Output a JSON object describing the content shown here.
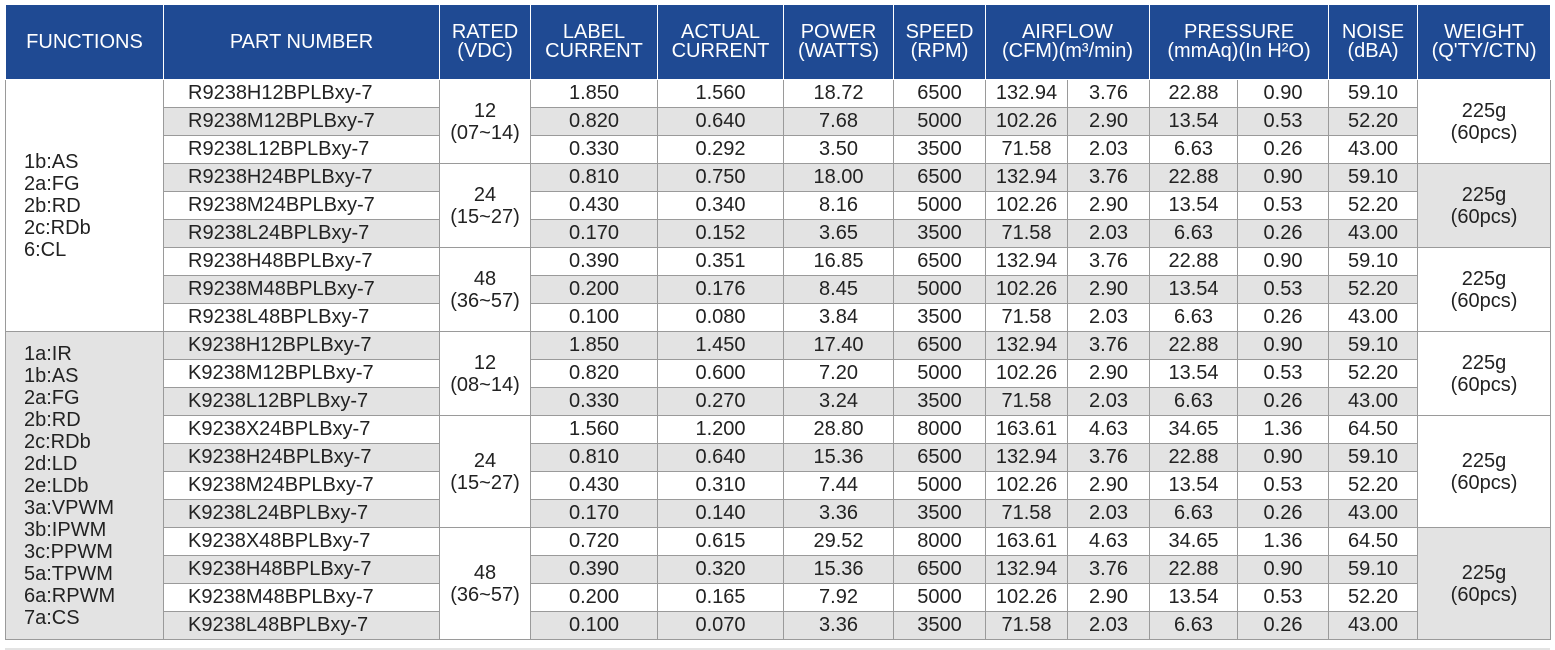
{
  "headers": {
    "functions": "FUNCTIONS",
    "part_number": "PART NUMBER",
    "rated": "RATED\n(VDC)",
    "label_current": "LABEL\nCURRENT",
    "actual_current": "ACTUAL\nCURRENT",
    "power": "POWER\n(WATTS)",
    "speed": "SPEED\n(RPM)",
    "airflow": "AIRFLOW\n(CFM)(m³/min)",
    "pressure": "PRESSURE\n(mmAq)(In H²O)",
    "noise": "NOISE\n(dBA)",
    "weight": "WEIGHT\n(Q'TY/CTN)"
  },
  "function_groups": [
    {
      "label": "1b:AS\n2a:FG\n2b:RD\n2c:RDb\n6:CL",
      "rows": 9
    },
    {
      "label": "1a:IR\n1b:AS\n2a:FG\n2b:RD\n2c:RDb\n2d:LD\n2e:LDb\n3a:VPWM\n3b:IPWM\n3c:PPWM\n5a:TPWM\n6a:RPWM\n7a:CS",
      "rows": 11
    }
  ],
  "rated_groups": [
    {
      "label": "12\n(07~14)",
      "rows": 3
    },
    {
      "label": "24\n(15~27)",
      "rows": 3
    },
    {
      "label": "48\n(36~57)",
      "rows": 3
    },
    {
      "label": "12\n(08~14)",
      "rows": 3
    },
    {
      "label": "24\n(15~27)",
      "rows": 4
    },
    {
      "label": "48\n(36~57)",
      "rows": 4
    }
  ],
  "weight_groups": [
    {
      "label": "225g\n(60pcs)",
      "rows": 3
    },
    {
      "label": "225g\n(60pcs)",
      "rows": 3
    },
    {
      "label": "225g\n(60pcs)",
      "rows": 3
    },
    {
      "label": "225g\n(60pcs)",
      "rows": 3
    },
    {
      "label": "225g\n(60pcs)",
      "rows": 4
    },
    {
      "label": "225g\n(60pcs)",
      "rows": 4
    }
  ],
  "rows": [
    [
      "R9238H12BPLBxy-7",
      "1.850",
      "1.560",
      "18.72",
      "6500",
      "132.94",
      "3.76",
      "22.88",
      "0.90",
      "59.10"
    ],
    [
      "R9238M12BPLBxy-7",
      "0.820",
      "0.640",
      "7.68",
      "5000",
      "102.26",
      "2.90",
      "13.54",
      "0.53",
      "52.20"
    ],
    [
      "R9238L12BPLBxy-7",
      "0.330",
      "0.292",
      "3.50",
      "3500",
      "71.58",
      "2.03",
      "6.63",
      "0.26",
      "43.00"
    ],
    [
      "R9238H24BPLBxy-7",
      "0.810",
      "0.750",
      "18.00",
      "6500",
      "132.94",
      "3.76",
      "22.88",
      "0.90",
      "59.10"
    ],
    [
      "R9238M24BPLBxy-7",
      "0.430",
      "0.340",
      "8.16",
      "5000",
      "102.26",
      "2.90",
      "13.54",
      "0.53",
      "52.20"
    ],
    [
      "R9238L24BPLBxy-7",
      "0.170",
      "0.152",
      "3.65",
      "3500",
      "71.58",
      "2.03",
      "6.63",
      "0.26",
      "43.00"
    ],
    [
      "R9238H48BPLBxy-7",
      "0.390",
      "0.351",
      "16.85",
      "6500",
      "132.94",
      "3.76",
      "22.88",
      "0.90",
      "59.10"
    ],
    [
      "R9238M48BPLBxy-7",
      "0.200",
      "0.176",
      "8.45",
      "5000",
      "102.26",
      "2.90",
      "13.54",
      "0.53",
      "52.20"
    ],
    [
      "R9238L48BPLBxy-7",
      "0.100",
      "0.080",
      "3.84",
      "3500",
      "71.58",
      "2.03",
      "6.63",
      "0.26",
      "43.00"
    ],
    [
      "K9238H12BPLBxy-7",
      "1.850",
      "1.450",
      "17.40",
      "6500",
      "132.94",
      "3.76",
      "22.88",
      "0.90",
      "59.10"
    ],
    [
      "K9238M12BPLBxy-7",
      "0.820",
      "0.600",
      "7.20",
      "5000",
      "102.26",
      "2.90",
      "13.54",
      "0.53",
      "52.20"
    ],
    [
      "K9238L12BPLBxy-7",
      "0.330",
      "0.270",
      "3.24",
      "3500",
      "71.58",
      "2.03",
      "6.63",
      "0.26",
      "43.00"
    ],
    [
      "K9238X24BPLBxy-7",
      "1.560",
      "1.200",
      "28.80",
      "8000",
      "163.61",
      "4.63",
      "34.65",
      "1.36",
      "64.50"
    ],
    [
      "K9238H24BPLBxy-7",
      "0.810",
      "0.640",
      "15.36",
      "6500",
      "132.94",
      "3.76",
      "22.88",
      "0.90",
      "59.10"
    ],
    [
      "K9238M24BPLBxy-7",
      "0.430",
      "0.310",
      "7.44",
      "5000",
      "102.26",
      "2.90",
      "13.54",
      "0.53",
      "52.20"
    ],
    [
      "K9238L24BPLBxy-7",
      "0.170",
      "0.140",
      "3.36",
      "3500",
      "71.58",
      "2.03",
      "6.63",
      "0.26",
      "43.00"
    ],
    [
      "K9238X48BPLBxy-7",
      "0.720",
      "0.615",
      "29.52",
      "8000",
      "163.61",
      "4.63",
      "34.65",
      "1.36",
      "64.50"
    ],
    [
      "K9238H48BPLBxy-7",
      "0.390",
      "0.320",
      "15.36",
      "6500",
      "132.94",
      "3.76",
      "22.88",
      "0.90",
      "59.10"
    ],
    [
      "K9238M48BPLBxy-7",
      "0.200",
      "0.165",
      "7.92",
      "5000",
      "102.26",
      "2.90",
      "13.54",
      "0.53",
      "52.20"
    ],
    [
      "K9238L48BPLBxy-7",
      "0.100",
      "0.070",
      "3.36",
      "3500",
      "71.58",
      "2.03",
      "6.63",
      "0.26",
      "43.00"
    ]
  ],
  "colors": {
    "header_bg": "#1f4a93",
    "header_text": "#ffffff",
    "row_alt_bg": "#e3e3e3",
    "row_bg": "#ffffff",
    "grid": "#9a9a9a"
  }
}
